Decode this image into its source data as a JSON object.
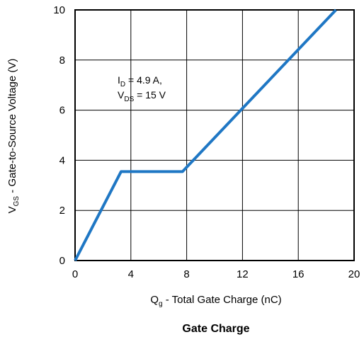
{
  "chart_data": {
    "type": "line",
    "title": "Gate Charge",
    "xlabel": {
      "main": "Q",
      "sub": "g",
      "rest": " - Total Gate Charge (nC)"
    },
    "ylabel": {
      "main": "V",
      "sub": "GS",
      "rest": " - Gate-to-Source Voltage (V)"
    },
    "xlim": [
      0,
      20
    ],
    "ylim": [
      0,
      10
    ],
    "xticks": [
      "0",
      "4",
      "8",
      "12",
      "16",
      "20"
    ],
    "yticks": [
      "0",
      "2",
      "4",
      "6",
      "8",
      "10"
    ],
    "grid": true,
    "series": [
      {
        "color": "#1f77c4",
        "x": [
          0,
          3.3,
          7.7,
          18.7
        ],
        "y": [
          0,
          3.55,
          3.55,
          10
        ]
      }
    ],
    "annotation": {
      "line1": {
        "main": "I",
        "sub": "D",
        "rest": " = 4.9 A,"
      },
      "line2": {
        "main": "V",
        "sub": "DS",
        "rest": " = 15 V"
      }
    }
  }
}
